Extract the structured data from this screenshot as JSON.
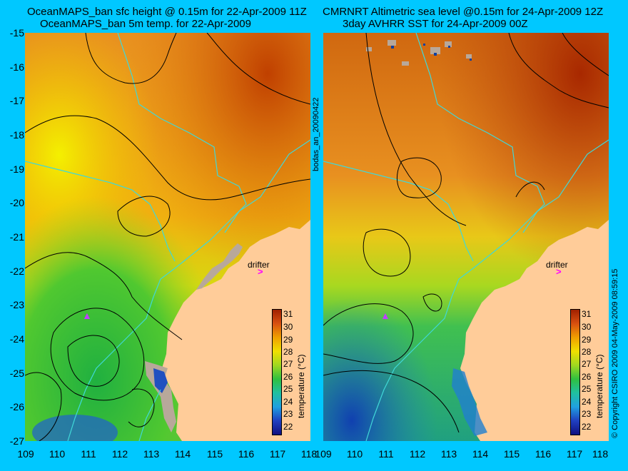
{
  "left_panel": {
    "title_line1": "OceanMAPS_ban sfc height @ 0.15m for 22-Apr-2009 11Z",
    "title_line2": "OceanMAPS_ban 5m temp. for 22-Apr-2009"
  },
  "right_panel": {
    "title_line1": "CMRNRT Altimetric sea level  @0.15m  for 24-Apr-2009 12Z",
    "title_line2": "3day AVHRR SST for 24-Apr-2009 00Z"
  },
  "y_ticks": [
    "-15",
    "-16",
    "-17",
    "-18",
    "-19",
    "-20",
    "-21",
    "-22",
    "-23",
    "-24",
    "-25",
    "-26",
    "-27"
  ],
  "x_ticks": [
    "109",
    "110",
    "111",
    "112",
    "113",
    "114",
    "115",
    "116",
    "117",
    "118"
  ],
  "side_label": "bodas_an_20090422",
  "copyright": "© Copyright CSIRO 2009   04-May-2009 08:59:15",
  "drifter_label": "drifter",
  "drifter_marker": ">",
  "colorbar": {
    "label": "temperature (°C)",
    "ticks": [
      "31",
      "30",
      "29",
      "28",
      "27",
      "26",
      "25",
      "24",
      "23",
      "22"
    ]
  },
  "colors": {
    "background": "#00c8ff",
    "land": "#ffcc99",
    "coast_shallow": "#b8a89a",
    "isobath": "#40d8d8",
    "contour": "#000000",
    "drifter": "#ff00ff"
  }
}
